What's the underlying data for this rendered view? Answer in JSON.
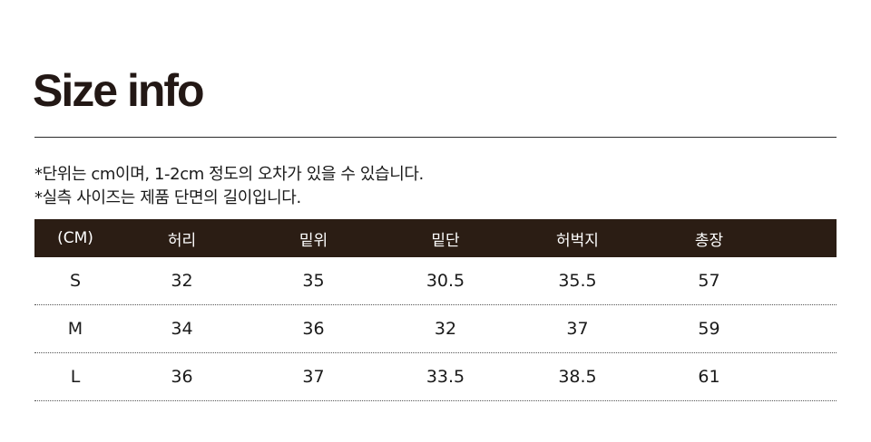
{
  "title": "Size info",
  "notes": [
    "*단위는 cm이며, 1-2cm 정도의 오차가 있을 수 있습니다.",
    "*실측 사이즈는 제품 단면의 길이입니다."
  ],
  "table": {
    "headers": [
      "(CM)",
      "허리",
      "밑위",
      "밑단",
      "허벅지",
      "총장"
    ],
    "rows": [
      [
        "S",
        "32",
        "35",
        "30.5",
        "35.5",
        "57"
      ],
      [
        "M",
        "34",
        "36",
        "32",
        "37",
        "59"
      ],
      [
        "L",
        "36",
        "37",
        "33.5",
        "38.5",
        "61"
      ]
    ]
  },
  "colors": {
    "header_bg": "#2b1d14",
    "title": "#231815"
  }
}
